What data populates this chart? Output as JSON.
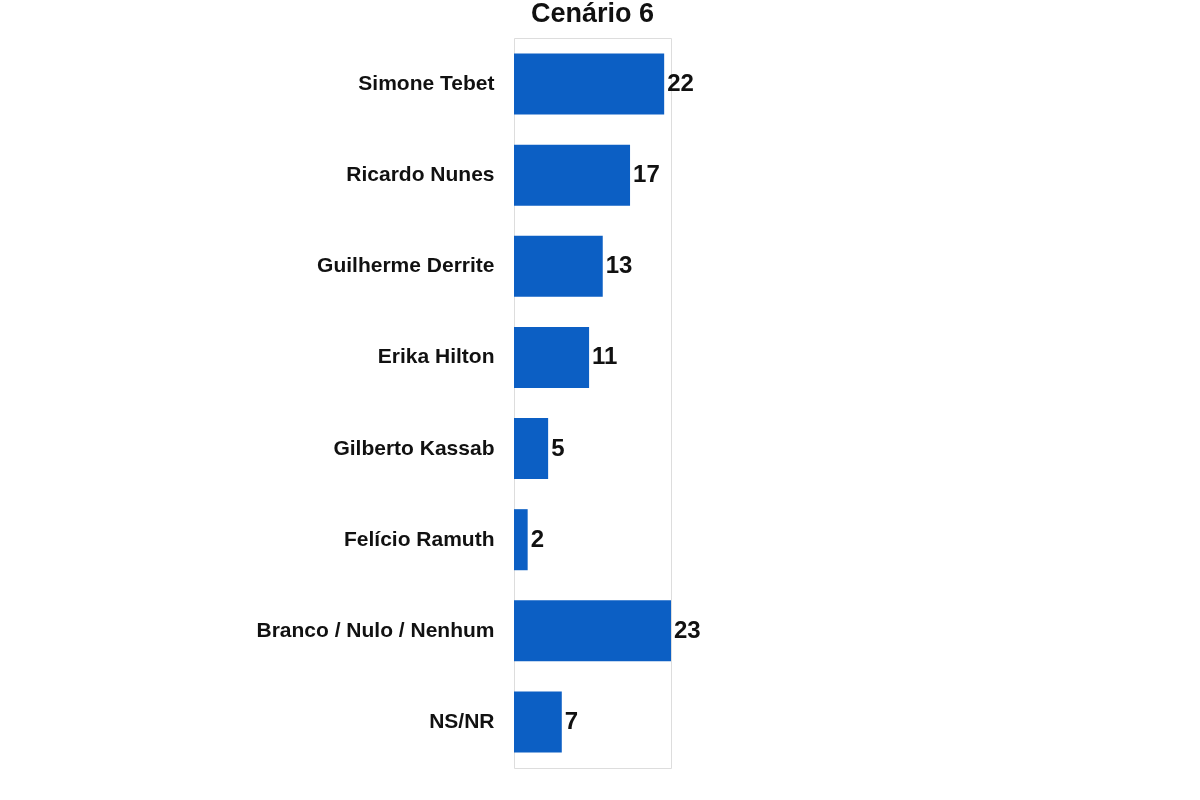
{
  "chart_data": {
    "type": "bar",
    "orientation": "horizontal",
    "title": "Cenário 6",
    "categories": [
      "Simone Tebet",
      "Ricardo Nunes",
      "Guilherme Derrite",
      "Erika Hilton",
      "Gilberto Kassab",
      "Felício Ramuth",
      "Branco / Nulo / Nenhum",
      "NS/NR"
    ],
    "values": [
      22,
      17,
      13,
      11,
      5,
      2,
      23,
      7
    ],
    "color": "#0c5fc4",
    "data_labels": true
  }
}
